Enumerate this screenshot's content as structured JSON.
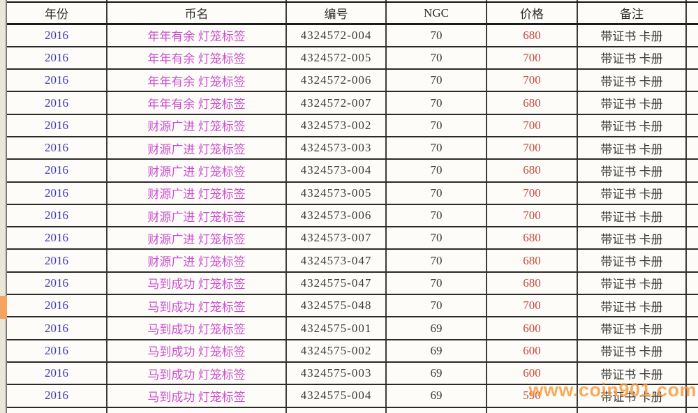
{
  "table": {
    "headers": [
      "年份",
      "币名",
      "编号",
      "NGC",
      "价格",
      "备注",
      ""
    ],
    "rows": [
      {
        "year": "2016",
        "name": "年年有余 灯笼标签",
        "number": "4324572-004",
        "ngc": "70",
        "price": "680",
        "note": "带证书 卡册"
      },
      {
        "year": "2016",
        "name": "年年有余 灯笼标签",
        "number": "4324572-005",
        "ngc": "70",
        "price": "700",
        "note": "带证书 卡册"
      },
      {
        "year": "2016",
        "name": "年年有余 灯笼标签",
        "number": "4324572-006",
        "ngc": "70",
        "price": "700",
        "note": "带证书 卡册"
      },
      {
        "year": "2016",
        "name": "年年有余 灯笼标签",
        "number": "4324572-007",
        "ngc": "70",
        "price": "680",
        "note": "带证书 卡册"
      },
      {
        "year": "2016",
        "name": "财源广进 灯笼标签",
        "number": "4324573-002",
        "ngc": "70",
        "price": "700",
        "note": "带证书 卡册"
      },
      {
        "year": "2016",
        "name": "财源广进 灯笼标签",
        "number": "4324573-003",
        "ngc": "70",
        "price": "700",
        "note": "带证书 卡册"
      },
      {
        "year": "2016",
        "name": "财源广进 灯笼标签",
        "number": "4324573-004",
        "ngc": "70",
        "price": "680",
        "note": "带证书 卡册"
      },
      {
        "year": "2016",
        "name": "财源广进 灯笼标签",
        "number": "4324573-005",
        "ngc": "70",
        "price": "700",
        "note": "带证书 卡册"
      },
      {
        "year": "2016",
        "name": "财源广进 灯笼标签",
        "number": "4324573-006",
        "ngc": "70",
        "price": "700",
        "note": "带证书 卡册"
      },
      {
        "year": "2016",
        "name": "财源广进 灯笼标签",
        "number": "4324573-007",
        "ngc": "70",
        "price": "680",
        "note": "带证书 卡册"
      },
      {
        "year": "2016",
        "name": "财源广进 灯笼标签",
        "number": "4324573-047",
        "ngc": "70",
        "price": "680",
        "note": "带证书 卡册"
      },
      {
        "year": "2016",
        "name": "马到成功 灯笼标签",
        "number": "4324575-047",
        "ngc": "70",
        "price": "680",
        "note": "带证书 卡册"
      },
      {
        "year": "2016",
        "name": "马到成功 灯笼标签",
        "number": "4324575-048",
        "ngc": "70",
        "price": "700",
        "note": "带证书 卡册"
      },
      {
        "year": "2016",
        "name": "马到成功 灯笼标签",
        "number": "4324575-001",
        "ngc": "69",
        "price": "600",
        "note": "带证书 卡册"
      },
      {
        "year": "2016",
        "name": "马到成功 灯笼标签",
        "number": "4324575-002",
        "ngc": "69",
        "price": "600",
        "note": "带证书 卡册"
      },
      {
        "year": "2016",
        "name": "马到成功 灯笼标签",
        "number": "4324575-003",
        "ngc": "69",
        "price": "600",
        "note": "带证书 卡册"
      },
      {
        "year": "2016",
        "name": "马到成功 灯笼标签",
        "number": "4324575-004",
        "ngc": "69",
        "price": "590",
        "note": "带证书 卡册"
      }
    ],
    "highlighted_row_index": 12
  },
  "watermark": {
    "text": "www.coin901.com"
  },
  "colors": {
    "year_text": "#3a3ab8",
    "coin_name_text": "#cb4ecf",
    "price_text": "#c3473f",
    "body_text": "#3b3a38",
    "row_highlight": "#f4a45c",
    "watermark": "#f69a3c",
    "grid_line": "#2a2a2a",
    "strip_background": "#eae6da"
  }
}
